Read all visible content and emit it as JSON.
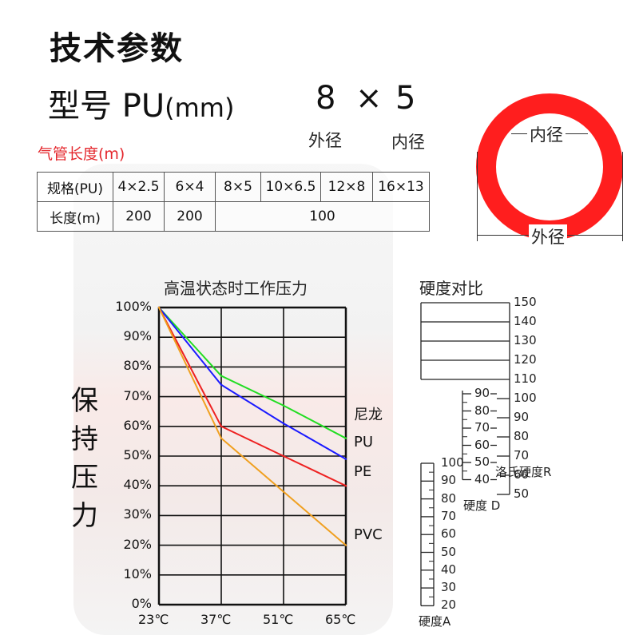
{
  "heading": "技术参数",
  "model": {
    "prefix": "型号",
    "material": "PU",
    "unit": "(mm)",
    "outer": "8",
    "times": "×",
    "inner": "5",
    "outer_label": "外径",
    "inner_label": "内径"
  },
  "tube_length_label": "气管长度(m)",
  "spec_table": {
    "row1_header": "规格(PU)",
    "sizes": [
      "4×2.5",
      "6×4",
      "8×5",
      "10×6.5",
      "12×8",
      "16×13"
    ],
    "row2_header": "长度(m)",
    "lengths": [
      "200",
      "200",
      "100"
    ]
  },
  "ring_diagram": {
    "inner_label": "内径",
    "outer_label": "外径",
    "ring_color": "#ff1e1e"
  },
  "chart_data": {
    "type": "line",
    "title": "高温状态时工作压力",
    "ylabel": "保持压力",
    "xlabel": "",
    "x": [
      "23℃",
      "37℃",
      "51℃",
      "65℃"
    ],
    "yticks": [
      "100%",
      "90%",
      "80%",
      "70%",
      "60%",
      "50%",
      "40%",
      "30%",
      "20%",
      "10%",
      "0%"
    ],
    "ylim": [
      0,
      100
    ],
    "grid": true,
    "series": [
      {
        "name": "尼龙",
        "color": "#22dd22",
        "values": [
          100,
          77,
          67,
          56
        ]
      },
      {
        "name": "PU",
        "color": "#1a1aff",
        "values": [
          100,
          74,
          61,
          49
        ]
      },
      {
        "name": "PE",
        "color": "#ee2222",
        "values": [
          100,
          60,
          50,
          40
        ]
      },
      {
        "name": "PVC",
        "color": "#f0a020",
        "values": [
          100,
          56,
          38,
          20
        ]
      }
    ]
  },
  "hardness": {
    "title": "硬度对比",
    "rockwell": {
      "name": "洛氏硬度R",
      "ticks": [
        "150",
        "140",
        "130",
        "120",
        "110",
        "100",
        "90",
        "80",
        "70",
        "60",
        "50"
      ]
    },
    "shore_d": {
      "name": "硬度 D",
      "ticks": [
        "90",
        "80",
        "70",
        "60",
        "50",
        "40"
      ]
    },
    "shore_a": {
      "name": "硬度A",
      "ticks": [
        "100",
        "90",
        "80",
        "70",
        "60",
        "50",
        "40",
        "30",
        "20"
      ]
    }
  }
}
